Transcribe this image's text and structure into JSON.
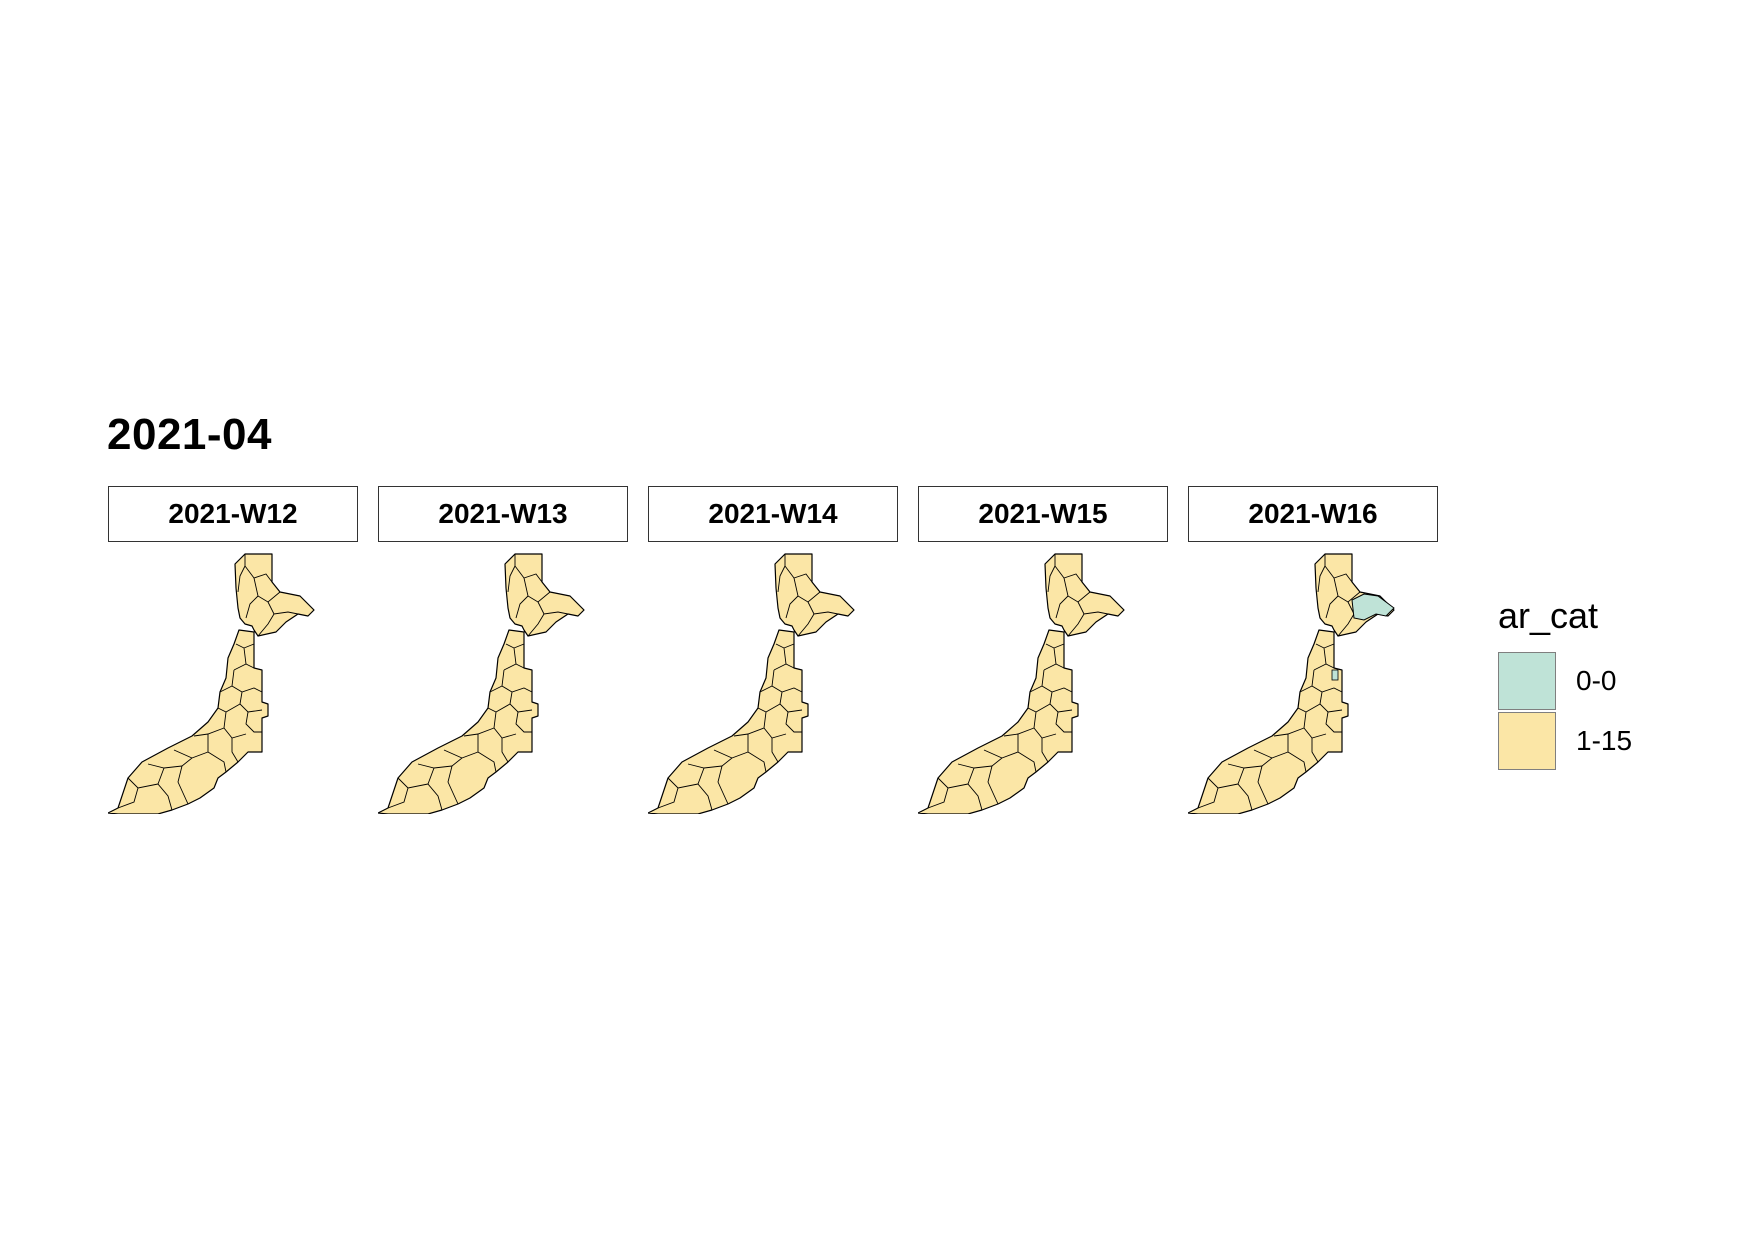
{
  "title": "2021-04",
  "panels": [
    {
      "label": "2021-W12",
      "highlight": "none"
    },
    {
      "label": "2021-W13",
      "highlight": "none"
    },
    {
      "label": "2021-W14",
      "highlight": "none"
    },
    {
      "label": "2021-W15",
      "highlight": "none"
    },
    {
      "label": "2021-W16",
      "highlight": "northeast"
    }
  ],
  "legend": {
    "title": "ar_cat",
    "items": [
      {
        "label": "0-0",
        "color": "#bfe3d7"
      },
      {
        "label": "1-15",
        "color": "#fbe6a6"
      }
    ]
  },
  "colors": {
    "fill_main": "#fbe6a6",
    "fill_zero": "#bfe3d7",
    "border": "#000000"
  }
}
